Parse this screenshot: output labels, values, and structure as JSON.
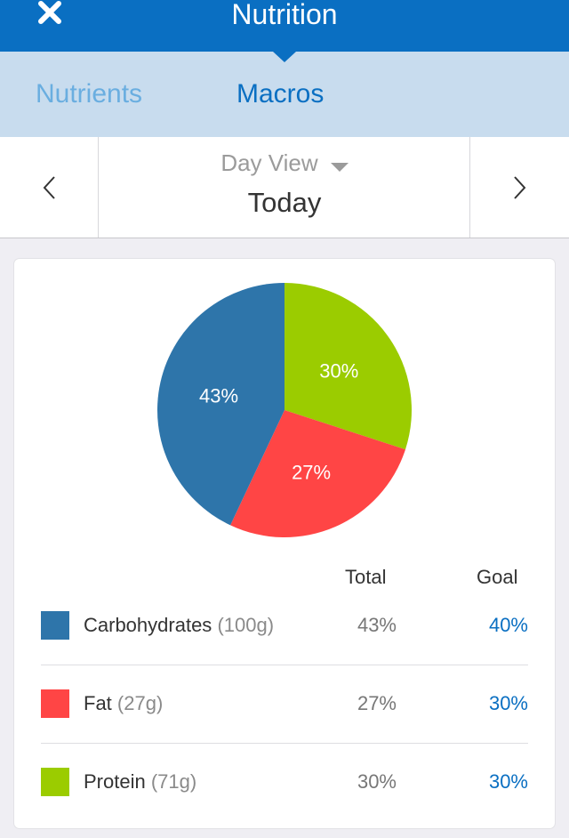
{
  "header": {
    "title": "Nutrition",
    "close_icon": "close-icon"
  },
  "tabs": [
    {
      "label": "Nutrients",
      "active": false
    },
    {
      "label": "Macros",
      "active": true
    }
  ],
  "date_nav": {
    "view_label": "Day View",
    "date_label": "Today",
    "prev_icon": "chevron-left-icon",
    "next_icon": "chevron-right-icon"
  },
  "table": {
    "col_total": "Total",
    "col_goal": "Goal",
    "rows": [
      {
        "name": "Carbohydrates",
        "grams": "(100g)",
        "total": "43%",
        "goal": "40%",
        "color": "#2e75aa"
      },
      {
        "name": "Fat",
        "grams": "(27g)",
        "total": "27%",
        "goal": "30%",
        "color": "#ff4545"
      },
      {
        "name": "Protein",
        "grams": "(71g)",
        "total": "30%",
        "goal": "30%",
        "color": "#9bcc00"
      }
    ]
  },
  "chart_data": {
    "type": "pie",
    "categories": [
      "Protein",
      "Fat",
      "Carbohydrates"
    ],
    "values": [
      30,
      27,
      43
    ],
    "labels": [
      "30%",
      "27%",
      "43%"
    ],
    "colors": [
      "#9bcc00",
      "#ff4545",
      "#2e75aa"
    ]
  },
  "colors": {
    "brand": "#0a6fc2",
    "tab_bar": "#c8dcee"
  }
}
